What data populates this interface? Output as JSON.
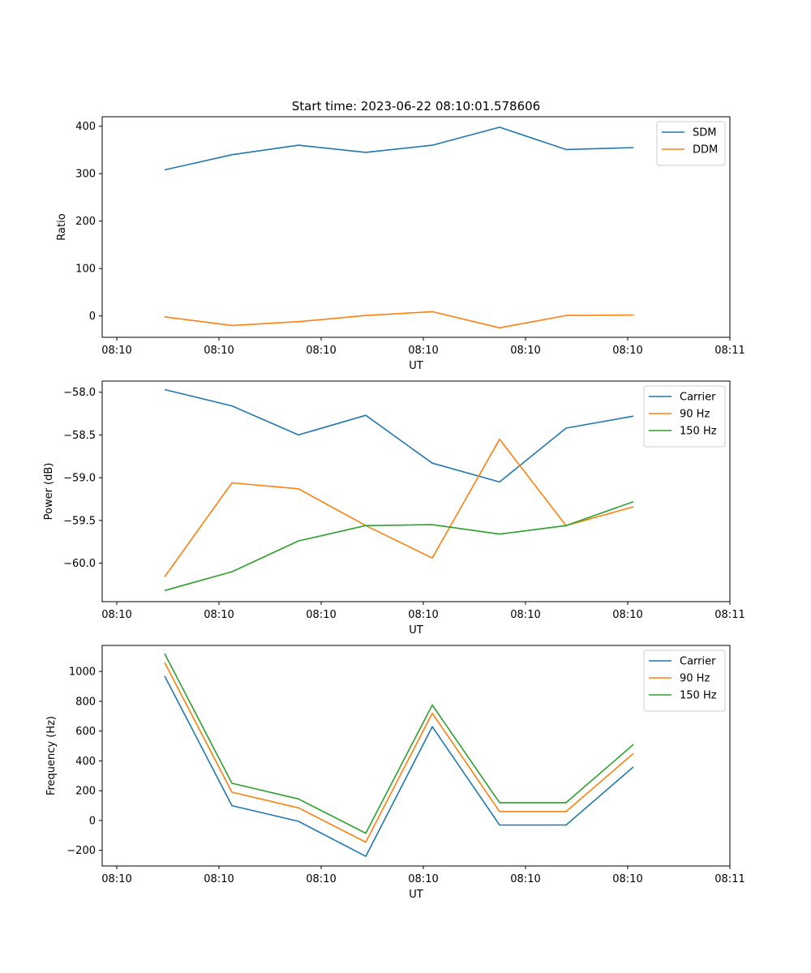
{
  "figure_title": "Start time: 2023-06-22 08:10:01.578606",
  "chart_data": [
    {
      "type": "line",
      "title": "Start time: 2023-06-22 08:10:01.578606",
      "xlabel": "UT",
      "ylabel": "Ratio",
      "x_tick_labels": [
        "08:10",
        "08:10",
        "08:10",
        "08:10",
        "08:10",
        "08:10",
        "08:10"
      ],
      "x_end_tick_label": "08:11",
      "ylim": [
        -45,
        420
      ],
      "y_ticks": [
        0,
        100,
        200,
        300,
        400
      ],
      "grid": false,
      "legend": "top-right",
      "series": [
        {
          "name": "SDM",
          "color": "#1f77b4",
          "values": [
            308,
            340,
            360,
            345,
            360,
            398,
            351,
            355
          ]
        },
        {
          "name": "DDM",
          "color": "#ff7f0e",
          "values": [
            -2,
            -20,
            -12,
            1,
            9,
            -25,
            1,
            2
          ]
        }
      ]
    },
    {
      "type": "line",
      "title": "",
      "xlabel": "UT",
      "ylabel": "Power (dB)",
      "x_tick_labels": [
        "08:10",
        "08:10",
        "08:10",
        "08:10",
        "08:10",
        "08:10",
        "08:10"
      ],
      "x_end_tick_label": "08:11",
      "ylim": [
        -60.45,
        -57.87
      ],
      "y_ticks": [
        -58.0,
        -58.5,
        -59.0,
        -59.5,
        -60.0
      ],
      "y_tick_labels": [
        "−58.0",
        "−58.5",
        "−59.0",
        "−59.5",
        "−60.0"
      ],
      "grid": false,
      "legend": "top-right",
      "series": [
        {
          "name": "Carrier",
          "color": "#1f77b4",
          "values": [
            -57.97,
            -58.16,
            -58.5,
            -58.27,
            -58.83,
            -59.05,
            -58.42,
            -58.28
          ]
        },
        {
          "name": "90 Hz",
          "color": "#ff7f0e",
          "values": [
            -60.16,
            -59.06,
            -59.13,
            -59.56,
            -59.94,
            -58.55,
            -59.56,
            -59.34
          ]
        },
        {
          "name": "150 Hz",
          "color": "#2ca02c",
          "values": [
            -60.32,
            -60.1,
            -59.74,
            -59.56,
            -59.55,
            -59.66,
            -59.56,
            -59.28
          ]
        }
      ]
    },
    {
      "type": "line",
      "title": "",
      "xlabel": "UT",
      "ylabel": "Frequency (Hz)",
      "x_tick_labels": [
        "08:10",
        "08:10",
        "08:10",
        "08:10",
        "08:10",
        "08:10",
        "08:10"
      ],
      "x_end_tick_label": "08:11",
      "ylim": [
        -305,
        1175
      ],
      "y_ticks": [
        -200,
        0,
        200,
        400,
        600,
        800,
        1000
      ],
      "y_tick_labels": [
        "−200",
        "0",
        "200",
        "400",
        "600",
        "800",
        "1000"
      ],
      "grid": false,
      "legend": "top-right",
      "series": [
        {
          "name": "Carrier",
          "color": "#1f77b4",
          "values": [
            970,
            100,
            -5,
            -240,
            630,
            -30,
            -30,
            360
          ]
        },
        {
          "name": "90 Hz",
          "color": "#ff7f0e",
          "values": [
            1060,
            190,
            85,
            -145,
            720,
            60,
            60,
            450
          ]
        },
        {
          "name": "150 Hz",
          "color": "#2ca02c",
          "values": [
            1120,
            250,
            145,
            -85,
            775,
            120,
            120,
            510
          ]
        }
      ]
    }
  ]
}
